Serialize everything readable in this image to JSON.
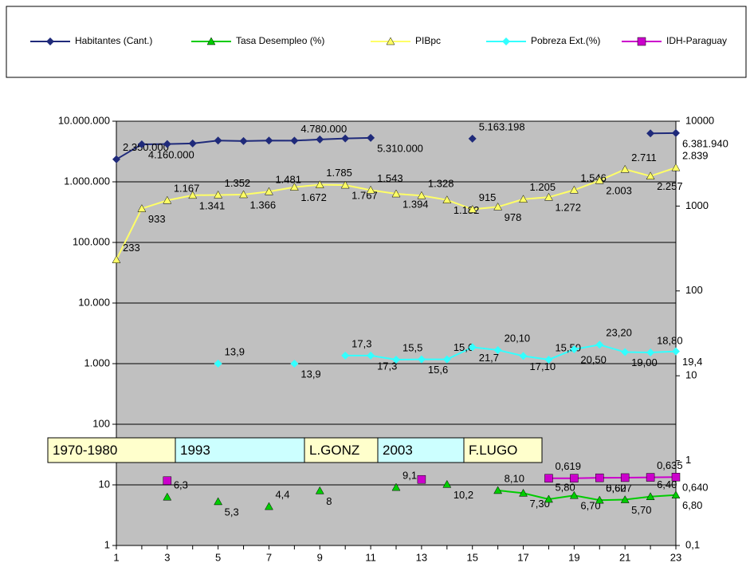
{
  "chart_data": {
    "type": "line",
    "categories": [
      "1",
      null,
      "3",
      null,
      "5",
      null,
      "7",
      null,
      "9",
      null,
      "11",
      null,
      "13",
      null,
      "15",
      null,
      "17",
      null,
      "19",
      null,
      "21",
      null,
      "23"
    ],
    "ylim": [
      1,
      10000000
    ],
    "yticks": [
      1,
      10,
      100,
      {
        "value": 1000,
        "label": "1.000"
      },
      {
        "value": 10000,
        "label": "10.000"
      },
      {
        "value": 100000,
        "label": "100.000"
      },
      {
        "value": 1000000,
        "label": "1.000.000"
      },
      {
        "value": 10000000,
        "label": "10.000.000"
      }
    ],
    "y2lim": [
      0.1,
      10000
    ],
    "y2ticks": [
      {
        "value": 0.1,
        "label": "0,1"
      },
      1,
      10,
      100,
      1000,
      10000
    ],
    "log_scale": true,
    "grid": true,
    "legend": "top",
    "series": [
      {
        "name": "Habitantes (Cant.)",
        "color": "#1f2a7a",
        "marker": "diamond",
        "axis": "y",
        "values": [
          2350000,
          4160000,
          4200000,
          4300000,
          4800000,
          4700000,
          4800000,
          4780000,
          5000000,
          5200000,
          5310000,
          null,
          null,
          null,
          5163198,
          null,
          null,
          null,
          null,
          null,
          null,
          6300000,
          6381940
        ],
        "value_labels": [
          "2.350.000",
          "4.160.000",
          null,
          null,
          null,
          null,
          null,
          "4.780.000",
          null,
          null,
          "5.310.000",
          null,
          null,
          null,
          "5.163.198",
          null,
          null,
          null,
          null,
          null,
          null,
          null,
          "6.381.940"
        ]
      },
      {
        "name": "Tasa Desempleo (%)",
        "color": "#00cc00",
        "marker": "triangle",
        "axis": "y",
        "values": [
          null,
          null,
          6.3,
          null,
          5.3,
          null,
          4.4,
          null,
          8,
          null,
          null,
          9.1,
          null,
          10.2,
          null,
          8.1,
          7.3,
          5.8,
          6.7,
          5.6,
          5.7,
          6.4,
          6.8
        ],
        "value_labels": [
          null,
          null,
          "6,3",
          null,
          "5,3",
          null,
          "4,4",
          null,
          "8",
          null,
          null,
          "9,1",
          null,
          "10,2",
          null,
          "8,10",
          "7,30",
          "5,80",
          "6,70",
          "5,60",
          "5,70",
          "6,40",
          "6,80"
        ]
      },
      {
        "name": "PIBpc",
        "color": "#ffff66",
        "marker": "triangle",
        "axis": "y2",
        "values": [
          233,
          933,
          1167,
          1341,
          1352,
          1366,
          1481,
          1672,
          1785,
          1767,
          1543,
          1394,
          1328,
          1182,
          915,
          978,
          1205,
          1272,
          1546,
          2003,
          2711,
          2257,
          2839
        ],
        "value_labels": [
          "233",
          "933",
          "1.167",
          "1.341",
          "1.352",
          "1.366",
          "1.481",
          "1.672",
          "1.785",
          "1.767",
          "1.543",
          "1.394",
          "1.328",
          "1.182",
          "915",
          "978",
          "1.205",
          "1.272",
          "1.546",
          "2.003",
          "2.711",
          "2.257",
          "2.839"
        ]
      },
      {
        "name": "Pobreza Ext.(%)",
        "color": "#33ffff",
        "marker": "diamond",
        "axis": "y2",
        "values": [
          null,
          null,
          null,
          null,
          13.9,
          null,
          null,
          13.9,
          null,
          17.3,
          17.3,
          15.5,
          15.6,
          15.6,
          21.7,
          20.1,
          17.1,
          15.5,
          20.5,
          23.2,
          19,
          18.8,
          19.4
        ],
        "value_labels": [
          null,
          null,
          null,
          null,
          "13,9",
          null,
          null,
          "13,9",
          null,
          "17,3",
          "17,3",
          "15,5",
          "15,6",
          "15,6",
          "21,7",
          "20,10",
          "17,10",
          "15,50",
          "20,50",
          "23,20",
          "19,00",
          "18,80",
          "19,4"
        ]
      },
      {
        "name": "IDH-Paraguay",
        "color": "#cc00cc",
        "marker": "square",
        "axis": "y2",
        "values": [
          null,
          null,
          0.58,
          null,
          null,
          null,
          null,
          null,
          null,
          null,
          null,
          null,
          0.6,
          null,
          null,
          null,
          null,
          0.619,
          0.62,
          0.627,
          0.63,
          0.635,
          0.64
        ],
        "value_labels": [
          null,
          null,
          null,
          null,
          null,
          null,
          null,
          null,
          null,
          null,
          null,
          null,
          null,
          null,
          null,
          null,
          null,
          "0,619",
          null,
          "0,627",
          null,
          "0,635",
          "0,640"
        ]
      }
    ],
    "annotations": [
      {
        "text": "1970-1980",
        "color": "#ffffcc"
      },
      {
        "text": "1993",
        "color": "#ccffff"
      },
      {
        "text": "L.GONZ",
        "color": "#ffffcc"
      },
      {
        "text": "2003",
        "color": "#ccffff"
      },
      {
        "text": "F.LUGO",
        "color": "#ffffcc"
      }
    ]
  }
}
